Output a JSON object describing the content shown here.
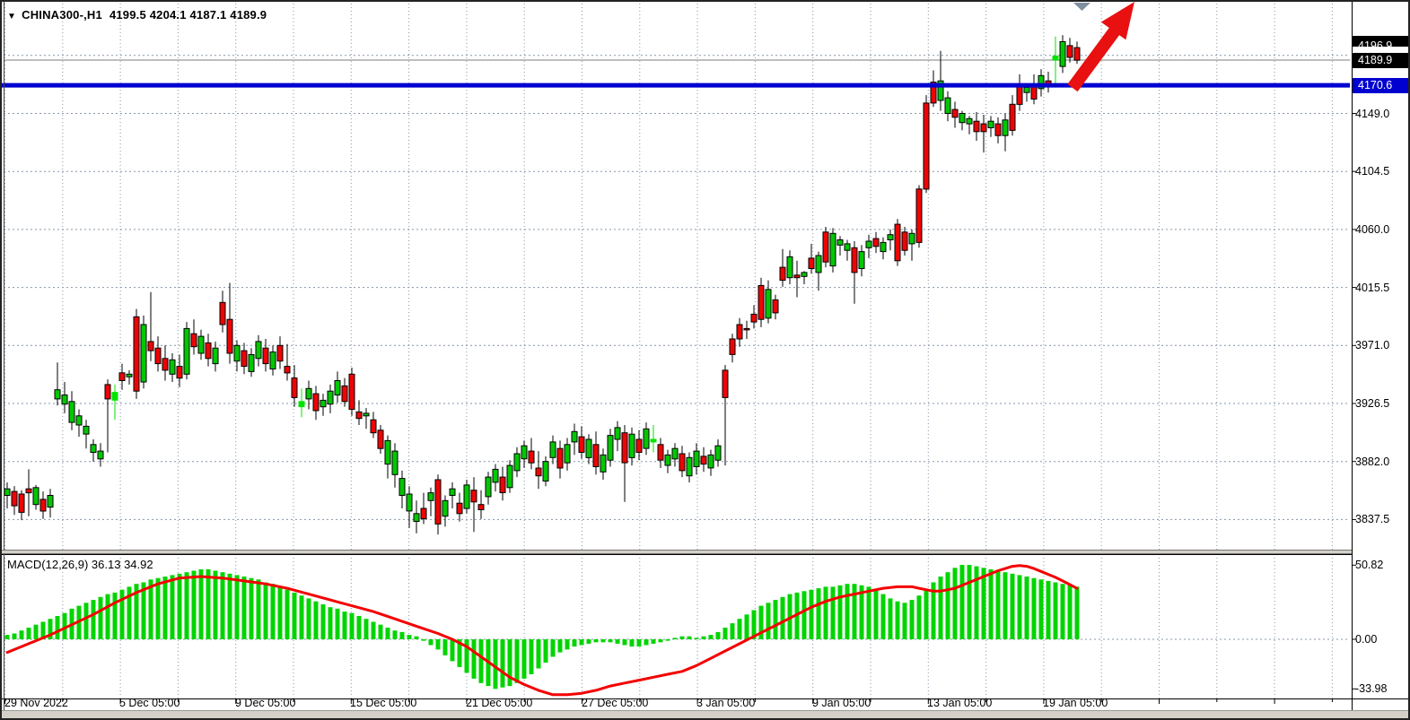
{
  "header": {
    "symbol_dropdown_icon": "▼",
    "title": "CHINA300-,H1",
    "ohlc_values": "4199.5 4204.1 4187.1 4189.9"
  },
  "macd_panel": {
    "label": "MACD(12,26,9) 36.13 34.92"
  },
  "price_axis": {
    "current_price_badge": "4189.9",
    "hline_badge": "4170.6",
    "labels": [
      "4149.0",
      "4104.5",
      "4060.0",
      "4015.5",
      "3971.0",
      "3926.5",
      "3882.0",
      "3837.5"
    ],
    "macd_labels": [
      "50.82",
      "0.00",
      "-33.98"
    ]
  },
  "time_axis": {
    "labels": [
      "29 Nov 2022",
      "5 Dec 05:00",
      "9 Dec 05:00",
      "15 Dec 05:00",
      "21 Dec 05:00",
      "27 Dec 05:00",
      "3 Jan 05:00",
      "9 Jan 05:00",
      "13 Jan 05:00",
      "19 Jan 05:00"
    ]
  },
  "colors": {
    "bull": "#00c800",
    "bear": "#ee0404",
    "doji": "#00e400",
    "wick": "#000000",
    "grid": "#8696a8",
    "macd_bar": "#00d400",
    "signal": "#f40000",
    "hline": "#0000d0",
    "current_line": "#a8a8a8",
    "badge_black_bg": "#000000",
    "badge_blue_bg": "#0000d0",
    "arrow": "#e81010",
    "marker_gray": "#808fa0",
    "frame": "#d4d0c8"
  },
  "chart_data": {
    "type": "candlestick_with_macd",
    "symbol": "CHINA300-",
    "timeframe": "H1",
    "last_ohlc": {
      "open": 4199.5,
      "high": 4204.1,
      "low": 4187.1,
      "close": 4189.9
    },
    "current_price": 4189.9,
    "horizontal_line": 4170.6,
    "price_axis_ticks": [
      4149.0,
      4104.5,
      4060.0,
      4015.5,
      3971.0,
      3926.5,
      3882.0,
      3837.5
    ],
    "price_gridlines": [
      4193.5,
      4149.0,
      4104.5,
      4060.0,
      4015.5,
      3971.0,
      3926.5,
      3882.0,
      3837.5
    ],
    "price_range_visible": [
      3820,
      4232
    ],
    "time_labels": [
      "29 Nov 2022",
      "5 Dec 05:00",
      "9 Dec 05:00",
      "15 Dec 05:00",
      "21 Dec 05:00",
      "27 Dec 05:00",
      "3 Jan 05:00",
      "9 Jan 05:00",
      "13 Jan 05:00",
      "19 Jan 05:00"
    ],
    "lime_doji_indices": [
      15,
      41,
      90,
      146
    ],
    "candles": [
      [
        3856,
        3866,
        3846,
        3861
      ],
      [
        3859,
        3863,
        3841,
        3848
      ],
      [
        3857,
        3860,
        3837,
        3843
      ],
      [
        3861,
        3876,
        3840,
        3858
      ],
      [
        3849,
        3864,
        3845,
        3862
      ],
      [
        3853,
        3859,
        3838,
        3844
      ],
      [
        3847,
        3861,
        3839,
        3856
      ],
      [
        3930,
        3958,
        3925,
        3937
      ],
      [
        3926,
        3943,
        3919,
        3933
      ],
      [
        3912,
        3936,
        3906,
        3928
      ],
      [
        3910,
        3922,
        3901,
        3917
      ],
      [
        3903,
        3914,
        3892,
        3909
      ],
      [
        3889,
        3899,
        3882,
        3895
      ],
      [
        3884,
        3896,
        3878,
        3890
      ],
      [
        3941,
        3945,
        3889,
        3930
      ],
      [
        3929,
        3941,
        3914,
        3935
      ],
      [
        3950,
        3957,
        3937,
        3944
      ],
      [
        3947,
        3952,
        3941,
        3949
      ],
      [
        3993,
        3999,
        3930,
        3936
      ],
      [
        3943,
        3994,
        3938,
        3987
      ],
      [
        3974,
        4012,
        3959,
        3967
      ],
      [
        3969,
        3978,
        3951,
        3957
      ],
      [
        3961,
        3971,
        3944,
        3952
      ],
      [
        3949,
        3965,
        3943,
        3960
      ],
      [
        3955,
        3964,
        3939,
        3946
      ],
      [
        3949,
        3989,
        3945,
        3984
      ],
      [
        3980,
        3991,
        3964,
        3970
      ],
      [
        3965,
        3983,
        3960,
        3978
      ],
      [
        3973,
        3980,
        3955,
        3961
      ],
      [
        3957,
        3974,
        3951,
        3969
      ],
      [
        4004,
        4013,
        3981,
        3987
      ],
      [
        3991,
        4019,
        3957,
        3965
      ],
      [
        3959,
        3975,
        3951,
        3971
      ],
      [
        3967,
        3973,
        3949,
        3955
      ],
      [
        3951,
        3969,
        3947,
        3964
      ],
      [
        3961,
        3979,
        3955,
        3974
      ],
      [
        3969,
        3976,
        3951,
        3957
      ],
      [
        3953,
        3971,
        3948,
        3966
      ],
      [
        3971,
        3978,
        3953,
        3959
      ],
      [
        3955,
        3972,
        3944,
        3950
      ],
      [
        3946,
        3956,
        3924,
        3931
      ],
      [
        3928,
        3938,
        3916,
        3924
      ],
      [
        3930,
        3944,
        3922,
        3938
      ],
      [
        3934,
        3940,
        3914,
        3921
      ],
      [
        3924,
        3934,
        3917,
        3929
      ],
      [
        3926,
        3941,
        3919,
        3936
      ],
      [
        3933,
        3951,
        3927,
        3944
      ],
      [
        3940,
        3946,
        3924,
        3928
      ],
      [
        3949,
        3954,
        3917,
        3922
      ],
      [
        3920,
        3929,
        3910,
        3915
      ],
      [
        3917,
        3923,
        3907,
        3919
      ],
      [
        3914,
        3920,
        3900,
        3904
      ],
      [
        3906,
        3910,
        3888,
        3892
      ],
      [
        3880,
        3902,
        3869,
        3898
      ],
      [
        3872,
        3896,
        3862,
        3890
      ],
      [
        3856,
        3875,
        3846,
        3869
      ],
      [
        3844,
        3863,
        3831,
        3857
      ],
      [
        3836,
        3852,
        3827,
        3842
      ],
      [
        3846,
        3858,
        3834,
        3838
      ],
      [
        3852,
        3862,
        3840,
        3858
      ],
      [
        3868,
        3872,
        3826,
        3834
      ],
      [
        3840,
        3856,
        3832,
        3852
      ],
      [
        3856,
        3866,
        3846,
        3861
      ],
      [
        3850,
        3858,
        3836,
        3842
      ],
      [
        3846,
        3868,
        3842,
        3864
      ],
      [
        3860,
        3870,
        3828,
        3851
      ],
      [
        3849,
        3860,
        3838,
        3845
      ],
      [
        3855,
        3874,
        3849,
        3870
      ],
      [
        3866,
        3880,
        3859,
        3876
      ],
      [
        3870,
        3878,
        3852,
        3858
      ],
      [
        3862,
        3883,
        3858,
        3879
      ],
      [
        3875,
        3893,
        3870,
        3888
      ],
      [
        3884,
        3898,
        3877,
        3894
      ],
      [
        3890,
        3900,
        3876,
        3881
      ],
      [
        3877,
        3890,
        3861,
        3871
      ],
      [
        3867,
        3886,
        3863,
        3882
      ],
      [
        3885,
        3902,
        3880,
        3897
      ],
      [
        3892,
        3898,
        3869,
        3877
      ],
      [
        3881,
        3900,
        3875,
        3895
      ],
      [
        3897,
        3911,
        3887,
        3905
      ],
      [
        3901,
        3909,
        3884,
        3889
      ],
      [
        3885,
        3903,
        3880,
        3899
      ],
      [
        3895,
        3905,
        3872,
        3878
      ],
      [
        3874,
        3892,
        3868,
        3887
      ],
      [
        3883,
        3907,
        3878,
        3902
      ],
      [
        3899,
        3913,
        3890,
        3908
      ],
      [
        3904,
        3910,
        3851,
        3881
      ],
      [
        3885,
        3908,
        3879,
        3903
      ],
      [
        3899,
        3906,
        3883,
        3889
      ],
      [
        3892,
        3912,
        3887,
        3907
      ],
      [
        3899,
        3910,
        3889,
        3897
      ],
      [
        3895,
        3900,
        3877,
        3883
      ],
      [
        3879,
        3891,
        3873,
        3887
      ],
      [
        3884,
        3896,
        3878,
        3892
      ],
      [
        3888,
        3894,
        3870,
        3875
      ],
      [
        3871,
        3889,
        3866,
        3885
      ],
      [
        3878,
        3896,
        3872,
        3890
      ],
      [
        3886,
        3893,
        3874,
        3880
      ],
      [
        3877,
        3891,
        3871,
        3887
      ],
      [
        3883,
        3899,
        3878,
        3894
      ],
      [
        3952,
        3956,
        3879,
        3931
      ],
      [
        3976,
        3980,
        3958,
        3964
      ],
      [
        3987,
        3992,
        3970,
        3976
      ],
      [
        3984,
        3990,
        3976,
        3983
      ],
      [
        3995,
        4002,
        3984,
        3989
      ],
      [
        4017,
        4023,
        3985,
        3991
      ],
      [
        3992,
        4021,
        3988,
        4014
      ],
      [
        4006,
        4010,
        3991,
        3996
      ],
      [
        4031,
        4045,
        4016,
        4021
      ],
      [
        4023,
        4044,
        4018,
        4039
      ],
      [
        4025,
        4036,
        4008,
        4023
      ],
      [
        4024,
        4028,
        4018,
        4027
      ],
      [
        4038,
        4049,
        4026,
        4030
      ],
      [
        4027,
        4043,
        4013,
        4040
      ],
      [
        4058,
        4062,
        4031,
        4035
      ],
      [
        4032,
        4061,
        4027,
        4057
      ],
      [
        4048,
        4055,
        4040,
        4052
      ],
      [
        4044,
        4052,
        4036,
        4049
      ],
      [
        4046,
        4051,
        4003,
        4027
      ],
      [
        4030,
        4048,
        4024,
        4043
      ],
      [
        4046,
        4056,
        4038,
        4051
      ],
      [
        4053,
        4058,
        4042,
        4047
      ],
      [
        4043,
        4054,
        4037,
        4050
      ],
      [
        4052,
        4060,
        4044,
        4056
      ],
      [
        4064,
        4068,
        4032,
        4036
      ],
      [
        4058,
        4062,
        4040,
        4044
      ],
      [
        4049,
        4060,
        4036,
        4057
      ],
      [
        4091,
        4094,
        4046,
        4050
      ],
      [
        4157,
        4163,
        4088,
        4091
      ],
      [
        4173,
        4182,
        4154,
        4157
      ],
      [
        4159,
        4197,
        4151,
        4174
      ],
      [
        4149,
        4166,
        4143,
        4161
      ],
      [
        4152,
        4158,
        4138,
        4146
      ],
      [
        4142,
        4151,
        4136,
        4149
      ],
      [
        4141,
        4147,
        4133,
        4145
      ],
      [
        4143,
        4150,
        4128,
        4135
      ],
      [
        4141,
        4148,
        4119,
        4135
      ],
      [
        4138,
        4147,
        4131,
        4143
      ],
      [
        4141,
        4146,
        4126,
        4132
      ],
      [
        4132,
        4149,
        4120,
        4144
      ],
      [
        4156,
        4163,
        4132,
        4136
      ],
      [
        4170,
        4179,
        4151,
        4156
      ],
      [
        4165,
        4172,
        4158,
        4169
      ],
      [
        4170,
        4179,
        4156,
        4160
      ],
      [
        4168,
        4183,
        4162,
        4178
      ],
      [
        4174,
        4181,
        4165,
        4171
      ],
      [
        4190,
        4208,
        4170,
        4193
      ],
      [
        4185,
        4209,
        4180,
        4204
      ],
      [
        4201,
        4207,
        4188,
        4192
      ],
      [
        4199.5,
        4204.1,
        4187.1,
        4189.9
      ]
    ],
    "macd": {
      "params": "12,26,9",
      "last_main": 36.13,
      "last_signal": 34.92,
      "axis_max": 50.82,
      "axis_min": -33.98,
      "histogram": [
        3,
        4,
        6,
        8,
        10,
        12,
        14,
        16,
        18,
        21,
        23,
        25,
        27,
        29,
        31,
        32,
        34,
        36,
        38,
        39,
        41,
        42,
        43,
        44,
        45,
        46,
        47,
        48,
        48,
        47,
        46,
        45,
        44,
        43,
        42,
        41,
        39,
        38,
        36,
        34,
        32,
        30,
        28,
        26,
        24,
        22,
        21,
        19,
        18,
        16,
        14,
        12,
        10,
        8,
        6,
        5,
        3,
        2,
        -1,
        -4,
        -7,
        -11,
        -15,
        -19,
        -23,
        -27,
        -30,
        -32,
        -34,
        -33,
        -32,
        -30,
        -27,
        -24,
        -20,
        -16,
        -12,
        -9,
        -7,
        -5,
        -4,
        -3,
        -2,
        -2,
        -2,
        -3,
        -4,
        -5,
        -5,
        -4,
        -3,
        -2,
        -1,
        1,
        2,
        2,
        1,
        2,
        3,
        5,
        8,
        11,
        14,
        17,
        20,
        23,
        25,
        27,
        29,
        31,
        32,
        33,
        34,
        35,
        36,
        36,
        37,
        38,
        38,
        37,
        36,
        34,
        31,
        28,
        26,
        25,
        27,
        30,
        34,
        39,
        43,
        46,
        49,
        51,
        51,
        50,
        49,
        48,
        47,
        46,
        45,
        44,
        43,
        42,
        41,
        40,
        39,
        38,
        37,
        36.1
      ],
      "signal_points": [
        [
          0,
          -9
        ],
        [
          3,
          -3
        ],
        [
          6,
          3
        ],
        [
          9,
          10
        ],
        [
          12,
          17
        ],
        [
          15,
          25
        ],
        [
          18,
          32
        ],
        [
          21,
          38
        ],
        [
          24,
          42
        ],
        [
          27,
          43
        ],
        [
          30,
          42
        ],
        [
          33,
          40
        ],
        [
          36,
          38
        ],
        [
          39,
          35
        ],
        [
          42,
          31
        ],
        [
          45,
          27
        ],
        [
          48,
          23
        ],
        [
          51,
          19
        ],
        [
          54,
          14
        ],
        [
          57,
          9
        ],
        [
          60,
          4
        ],
        [
          62,
          0
        ],
        [
          64,
          -5
        ],
        [
          66,
          -12
        ],
        [
          68,
          -19
        ],
        [
          70,
          -26
        ],
        [
          72,
          -31
        ],
        [
          74,
          -35
        ],
        [
          76,
          -38
        ],
        [
          78,
          -38
        ],
        [
          80,
          -37
        ],
        [
          82,
          -35
        ],
        [
          84,
          -32
        ],
        [
          86,
          -30
        ],
        [
          88,
          -28
        ],
        [
          90,
          -26
        ],
        [
          92,
          -24
        ],
        [
          94,
          -22
        ],
        [
          96,
          -18
        ],
        [
          98,
          -13
        ],
        [
          100,
          -8
        ],
        [
          102,
          -3
        ],
        [
          104,
          2
        ],
        [
          106,
          7
        ],
        [
          108,
          12
        ],
        [
          110,
          17
        ],
        [
          112,
          22
        ],
        [
          114,
          26
        ],
        [
          116,
          29
        ],
        [
          118,
          31
        ],
        [
          120,
          33
        ],
        [
          122,
          35
        ],
        [
          124,
          36
        ],
        [
          126,
          36
        ],
        [
          127,
          35
        ],
        [
          128,
          34
        ],
        [
          129,
          33
        ],
        [
          130,
          33
        ],
        [
          131,
          34
        ],
        [
          132,
          35
        ],
        [
          133,
          37
        ],
        [
          134,
          39
        ],
        [
          135,
          41
        ],
        [
          136,
          43
        ],
        [
          137,
          45
        ],
        [
          138,
          47
        ],
        [
          139,
          48.5
        ],
        [
          140,
          50
        ],
        [
          141,
          50.5
        ],
        [
          142,
          50
        ],
        [
          143,
          48.5
        ],
        [
          144,
          46.5
        ],
        [
          145,
          44.5
        ],
        [
          146,
          42.5
        ],
        [
          147,
          40
        ],
        [
          148,
          37.5
        ],
        [
          149,
          34.9
        ]
      ]
    }
  }
}
